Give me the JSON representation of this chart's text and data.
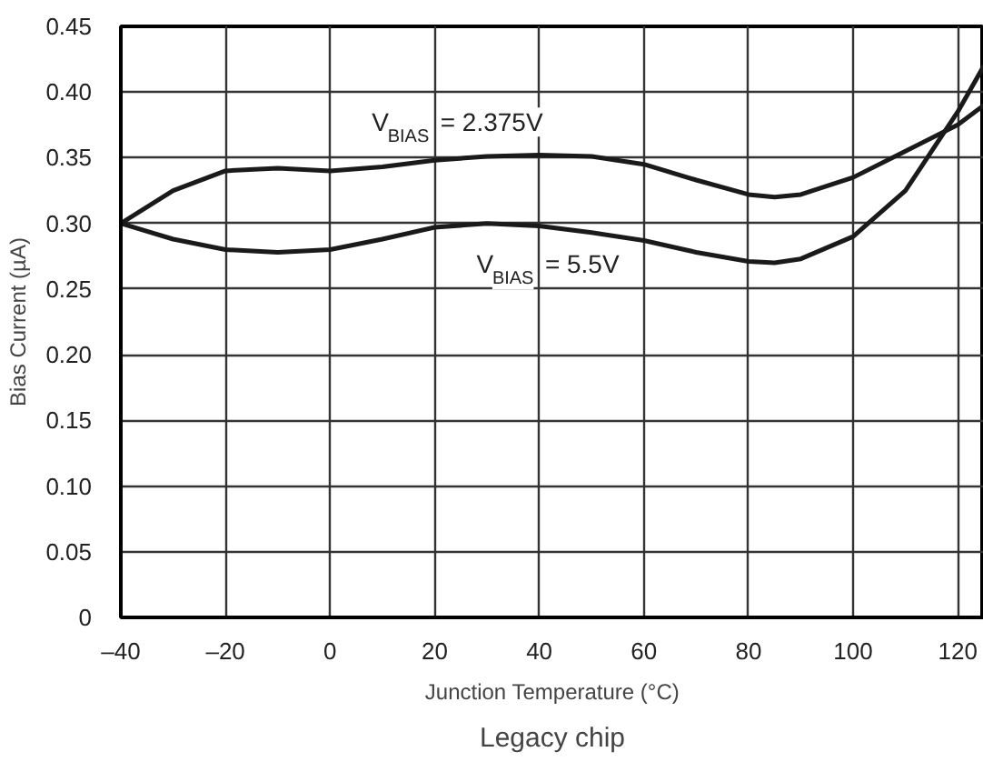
{
  "chart_data": {
    "type": "line",
    "xlabel": "Junction Temperature (°C)",
    "ylabel": "Bias Current (µA)",
    "annotations": [
      "Legacy chip"
    ],
    "xlim": [
      -40,
      125
    ],
    "ylim": [
      0,
      0.45
    ],
    "xticks": [
      {
        "value": -40,
        "label": "–40"
      },
      {
        "value": -20,
        "label": "–20"
      },
      0,
      20,
      40,
      60,
      80,
      100,
      120
    ],
    "yticks": [
      {
        "value": 0,
        "label": "0"
      },
      {
        "value": 0.05,
        "label": "0.05"
      },
      {
        "value": 0.1,
        "label": "0.10"
      },
      {
        "value": 0.15,
        "label": "0.15"
      },
      {
        "value": 0.2,
        "label": "0.20"
      },
      {
        "value": 0.25,
        "label": "0.25"
      },
      {
        "value": 0.3,
        "label": "0.30"
      },
      {
        "value": 0.35,
        "label": "0.35"
      },
      {
        "value": 0.4,
        "label": "0.40"
      },
      {
        "value": 0.45,
        "label": "0.45"
      }
    ],
    "grid": true,
    "legend": false,
    "marker": "none",
    "line_style": "solid",
    "x": [
      -40,
      -30,
      -20,
      -10,
      0,
      10,
      20,
      30,
      40,
      50,
      60,
      70,
      80,
      85,
      90,
      100,
      110,
      120,
      125
    ],
    "series": [
      {
        "name": "V$_{BIAS}$ = 2.375V",
        "color": "#1a1a1a",
        "values": [
          0.3,
          0.325,
          0.34,
          0.342,
          0.34,
          0.343,
          0.348,
          0.351,
          0.352,
          0.351,
          0.345,
          0.333,
          0.322,
          0.32,
          0.322,
          0.335,
          0.355,
          0.375,
          0.39
        ]
      },
      {
        "name": "V$_{BIAS}$ = 5.5V",
        "color": "#1a1a1a",
        "values": [
          0.3,
          0.288,
          0.28,
          0.278,
          0.28,
          0.288,
          0.297,
          0.3,
          0.298,
          0.293,
          0.287,
          0.278,
          0.271,
          0.27,
          0.273,
          0.29,
          0.325,
          0.385,
          0.42
        ]
      }
    ]
  }
}
